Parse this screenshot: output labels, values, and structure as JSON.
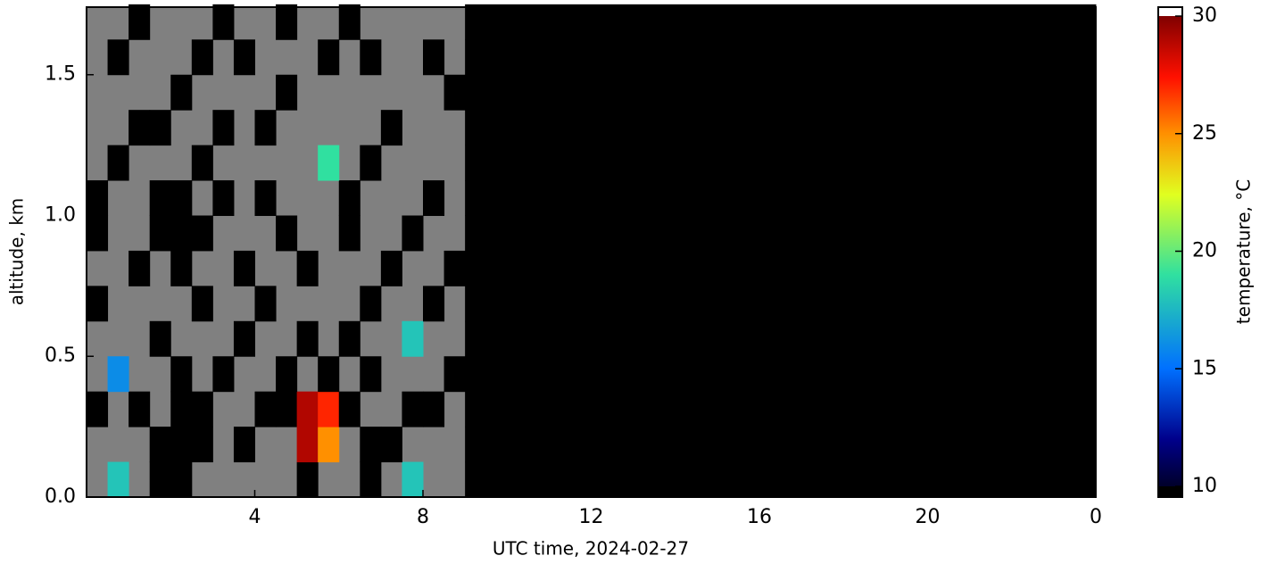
{
  "chart_data": {
    "type": "heatmap",
    "xlabel": "UTC time,  2024-02-27",
    "ylabel": "altitude, km",
    "colorbar_label": "temperature, °C",
    "x_edges": [
      0,
      0.5,
      1,
      1.5,
      2,
      2.5,
      3,
      3.5,
      4,
      4.5,
      5,
      5.5,
      6,
      6.5,
      7,
      7.5,
      8,
      8.5,
      9,
      24
    ],
    "y_edges": [
      0,
      0.125,
      0.25,
      0.375,
      0.5,
      0.625,
      0.75,
      0.875,
      1,
      1.125,
      1.25,
      1.375,
      1.5,
      1.625,
      1.75
    ],
    "z": [
      [
        null,
        18,
        null,
        10,
        10,
        null,
        null,
        null,
        null,
        null,
        10,
        null,
        null,
        10,
        null,
        18,
        null,
        null,
        10
      ],
      [
        null,
        null,
        null,
        10,
        10,
        10,
        null,
        10,
        null,
        null,
        29,
        25,
        null,
        10,
        10,
        null,
        null,
        null,
        10
      ],
      [
        10,
        null,
        10,
        null,
        10,
        10,
        null,
        null,
        10,
        10,
        29,
        27,
        10,
        null,
        null,
        10,
        10,
        null,
        10
      ],
      [
        null,
        16,
        null,
        null,
        10,
        null,
        10,
        null,
        null,
        10,
        null,
        10,
        null,
        10,
        null,
        null,
        null,
        10,
        10
      ],
      [
        null,
        null,
        null,
        10,
        null,
        null,
        null,
        10,
        null,
        null,
        10,
        null,
        10,
        null,
        null,
        18,
        null,
        null,
        10
      ],
      [
        10,
        null,
        null,
        null,
        null,
        10,
        null,
        null,
        10,
        null,
        null,
        null,
        null,
        10,
        null,
        null,
        10,
        null,
        10
      ],
      [
        null,
        null,
        10,
        null,
        10,
        null,
        null,
        10,
        null,
        null,
        10,
        null,
        null,
        null,
        10,
        null,
        null,
        10,
        10
      ],
      [
        10,
        null,
        null,
        10,
        10,
        10,
        null,
        null,
        null,
        10,
        null,
        null,
        10,
        null,
        null,
        10,
        null,
        null,
        10
      ],
      [
        10,
        null,
        null,
        10,
        10,
        null,
        10,
        null,
        10,
        null,
        null,
        null,
        10,
        null,
        null,
        null,
        10,
        null,
        10
      ],
      [
        null,
        10,
        null,
        null,
        null,
        10,
        null,
        null,
        null,
        null,
        null,
        19,
        null,
        10,
        null,
        null,
        null,
        null,
        10
      ],
      [
        null,
        null,
        10,
        10,
        null,
        null,
        10,
        null,
        10,
        null,
        null,
        null,
        null,
        null,
        10,
        null,
        null,
        null,
        10
      ],
      [
        null,
        null,
        null,
        null,
        10,
        null,
        null,
        null,
        null,
        10,
        null,
        null,
        null,
        null,
        null,
        null,
        null,
        10,
        10
      ],
      [
        null,
        10,
        null,
        null,
        null,
        10,
        null,
        10,
        null,
        null,
        null,
        10,
        null,
        10,
        null,
        null,
        10,
        null,
        10
      ],
      [
        null,
        null,
        10,
        null,
        null,
        null,
        10,
        null,
        null,
        10,
        null,
        null,
        10,
        null,
        null,
        null,
        null,
        null,
        10
      ]
    ],
    "xlim": [
      0,
      24
    ],
    "xticks": [
      4,
      8,
      12,
      16,
      20,
      {
        "value": 24,
        "label": "0"
      }
    ],
    "ylim": [
      0,
      1.74
    ],
    "yticks": [
      {
        "value": 0,
        "label": "0.0"
      },
      {
        "value": 0.5,
        "label": "0.5"
      },
      {
        "value": 1,
        "label": "1.0"
      },
      {
        "value": 1.5,
        "label": "1.5"
      }
    ],
    "clim": [
      10,
      30
    ],
    "cticks": [
      10,
      15,
      20,
      25,
      30
    ],
    "missing_color": "#808080"
  }
}
